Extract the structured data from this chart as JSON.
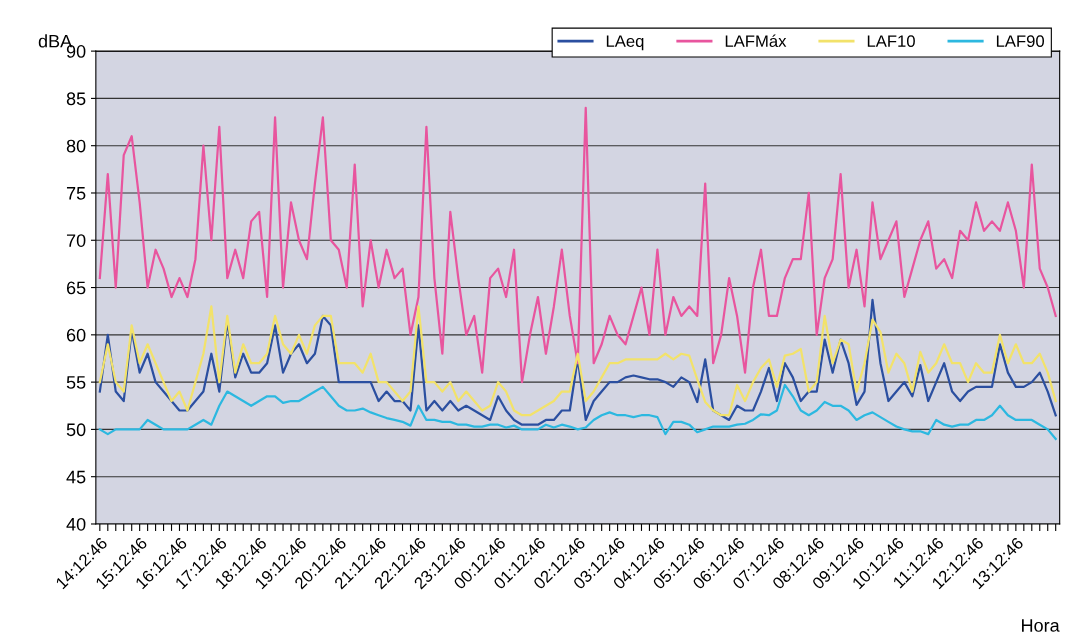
{
  "chart_data": {
    "type": "line",
    "ylabel": "dBA",
    "xlabel": "Hora",
    "categories": [
      "14:12:46",
      null,
      null,
      null,
      null,
      "15:12:46",
      null,
      null,
      null,
      null,
      "16:12:46",
      null,
      null,
      null,
      null,
      "17:12:46",
      null,
      null,
      null,
      null,
      "18:12:46",
      null,
      null,
      null,
      null,
      "19:12:46",
      null,
      null,
      null,
      null,
      "20:12:46",
      null,
      null,
      null,
      null,
      "21:12:46",
      null,
      null,
      null,
      null,
      "22:12:46",
      null,
      null,
      null,
      null,
      "23:12:46",
      null,
      null,
      null,
      null,
      "00:12:46",
      null,
      null,
      null,
      null,
      "01:12:46",
      null,
      null,
      null,
      null,
      "02:12:46",
      null,
      null,
      null,
      null,
      "03:12:46",
      null,
      null,
      null,
      null,
      "04:12:46",
      null,
      null,
      null,
      null,
      "05:12:46",
      null,
      null,
      null,
      null,
      "06:12:46",
      null,
      null,
      null,
      null,
      "07:12:46",
      null,
      null,
      null,
      null,
      "08:12:46",
      null,
      null,
      null,
      null,
      "09:12:46",
      null,
      null,
      null,
      null,
      "10:12:46",
      null,
      null,
      null,
      null,
      "11:12:46",
      null,
      null,
      null,
      null,
      "12:12:46",
      null,
      null,
      null,
      null,
      "13:12:46",
      null,
      null,
      null,
      null,
      null
    ],
    "series": [
      {
        "name": "LAeq",
        "color": "#2b4fa0",
        "values": [
          54,
          60,
          54,
          53,
          60.5,
          56,
          58,
          55,
          54,
          53,
          52,
          52,
          53,
          54,
          58,
          54,
          61.5,
          55.5,
          58,
          56,
          56,
          57,
          61,
          56,
          58,
          59,
          57,
          58,
          62,
          61,
          55,
          55,
          55,
          55,
          55,
          53,
          54,
          53,
          53,
          52,
          61,
          52,
          53,
          52,
          53,
          52,
          52.5,
          52,
          51.5,
          51,
          53.5,
          52,
          51,
          50.5,
          50.5,
          50.5,
          51,
          51,
          52,
          52,
          57.5,
          51,
          53,
          54,
          55,
          55,
          55.5,
          55.7,
          55.5,
          55.3,
          55.3,
          55,
          54.5,
          55.5,
          55,
          52.9,
          57.4,
          52,
          51.5,
          51,
          52.5,
          52,
          52,
          54,
          56.5,
          53,
          57,
          55.5,
          53,
          54,
          54,
          59.5,
          56,
          59.5,
          57,
          52.6,
          54,
          63.7,
          57,
          53,
          54,
          55,
          53.5,
          56.8,
          53,
          55,
          57,
          54,
          53,
          54,
          54.5,
          54.5,
          54.5,
          59,
          56,
          54.5,
          54.5,
          55,
          56,
          54,
          51.5
        ]
      },
      {
        "name": "LAFMáx",
        "color": "#e8559e",
        "values": [
          66,
          77,
          65,
          79,
          81,
          74,
          65,
          69,
          67,
          64,
          66,
          64,
          68,
          80,
          70,
          82,
          66,
          69,
          66,
          72,
          73,
          64,
          83,
          65,
          74,
          70,
          68,
          76,
          83,
          70,
          69,
          65,
          78,
          63,
          70,
          65,
          69,
          66,
          67,
          60,
          64,
          82,
          66,
          58,
          73,
          66,
          60,
          62,
          56,
          66,
          67,
          64,
          69,
          55,
          60,
          64,
          58,
          63,
          69,
          62,
          57,
          84,
          57,
          59,
          62,
          60,
          59,
          62,
          65,
          60,
          69,
          60,
          64,
          62,
          63,
          62,
          76,
          57,
          60,
          66,
          62,
          56,
          65,
          69,
          62,
          62,
          66,
          68,
          68,
          75,
          60,
          66,
          68,
          77,
          65,
          69,
          63,
          74,
          68,
          70,
          72,
          64,
          67,
          70,
          72,
          67,
          68,
          66,
          71,
          70,
          74,
          71,
          72,
          71,
          74,
          71,
          65,
          78,
          67,
          65,
          62
        ]
      },
      {
        "name": "LAF10",
        "color": "#f2e26a",
        "values": [
          55,
          59,
          55,
          54,
          61,
          57,
          59,
          57,
          55,
          53,
          54,
          52,
          55,
          58,
          63,
          55,
          62,
          56,
          59,
          57,
          57,
          58,
          62,
          59,
          58,
          60,
          58,
          61,
          62,
          62,
          57,
          57,
          57,
          56,
          58,
          55,
          55,
          54,
          53,
          54,
          63,
          55,
          55,
          54,
          55,
          53,
          54,
          53,
          52,
          52.5,
          55,
          54,
          52,
          51.5,
          51.5,
          52,
          52.5,
          53,
          54,
          54,
          58,
          53,
          54,
          55.5,
          57,
          57,
          57.4,
          57.4,
          57.4,
          57.4,
          57.4,
          58,
          57.4,
          58,
          57.8,
          55.3,
          52.9,
          52,
          51.5,
          51.5,
          54.7,
          53,
          55,
          56.5,
          57.4,
          54.5,
          57.8,
          58,
          58.5,
          54,
          55,
          62,
          57,
          59.5,
          59,
          54,
          57,
          61.6,
          60.3,
          56,
          58,
          57,
          54,
          58.2,
          56,
          57,
          59,
          57,
          57,
          55,
          57,
          56,
          56,
          60,
          57,
          59,
          57,
          57,
          58,
          56,
          53
        ]
      },
      {
        "name": "LAF90",
        "color": "#2cb8e0",
        "values": [
          50,
          49.5,
          50,
          50,
          50,
          50,
          51,
          50.5,
          50,
          50,
          50,
          50,
          50.5,
          51,
          50.5,
          52.5,
          54,
          53.5,
          53,
          52.5,
          53,
          53.5,
          53.5,
          52.8,
          53,
          53,
          53.5,
          54,
          54.5,
          53.5,
          52.5,
          52,
          52,
          52.2,
          51.8,
          51.5,
          51.2,
          51,
          50.8,
          50.4,
          52.5,
          51,
          51,
          50.8,
          50.8,
          50.5,
          50.5,
          50.3,
          50.3,
          50.5,
          50.5,
          50.2,
          50.4,
          50,
          50,
          50,
          50.5,
          50.2,
          50.5,
          50.3,
          50,
          50.2,
          51,
          51.5,
          51.8,
          51.5,
          51.5,
          51.3,
          51.5,
          51.5,
          51.3,
          49.5,
          50.8,
          50.8,
          50.5,
          49.7,
          50,
          50.3,
          50.3,
          50.3,
          50.5,
          50.6,
          51,
          51.6,
          51.5,
          52,
          54.7,
          53.5,
          52,
          51.5,
          52,
          52.9,
          52.5,
          52.5,
          52,
          51,
          51.5,
          51.8,
          51.3,
          50.8,
          50.3,
          50,
          49.8,
          49.8,
          49.5,
          51,
          50.5,
          50.3,
          50.5,
          50.5,
          51,
          51,
          51.5,
          52.5,
          51.5,
          51,
          51,
          51,
          50.5,
          50,
          49
        ]
      }
    ],
    "ylim": [
      40,
      90
    ],
    "yticks": [
      40,
      45,
      50,
      55,
      60,
      65,
      70,
      75,
      80,
      85,
      90
    ],
    "grid": "y",
    "legend": "top right"
  }
}
